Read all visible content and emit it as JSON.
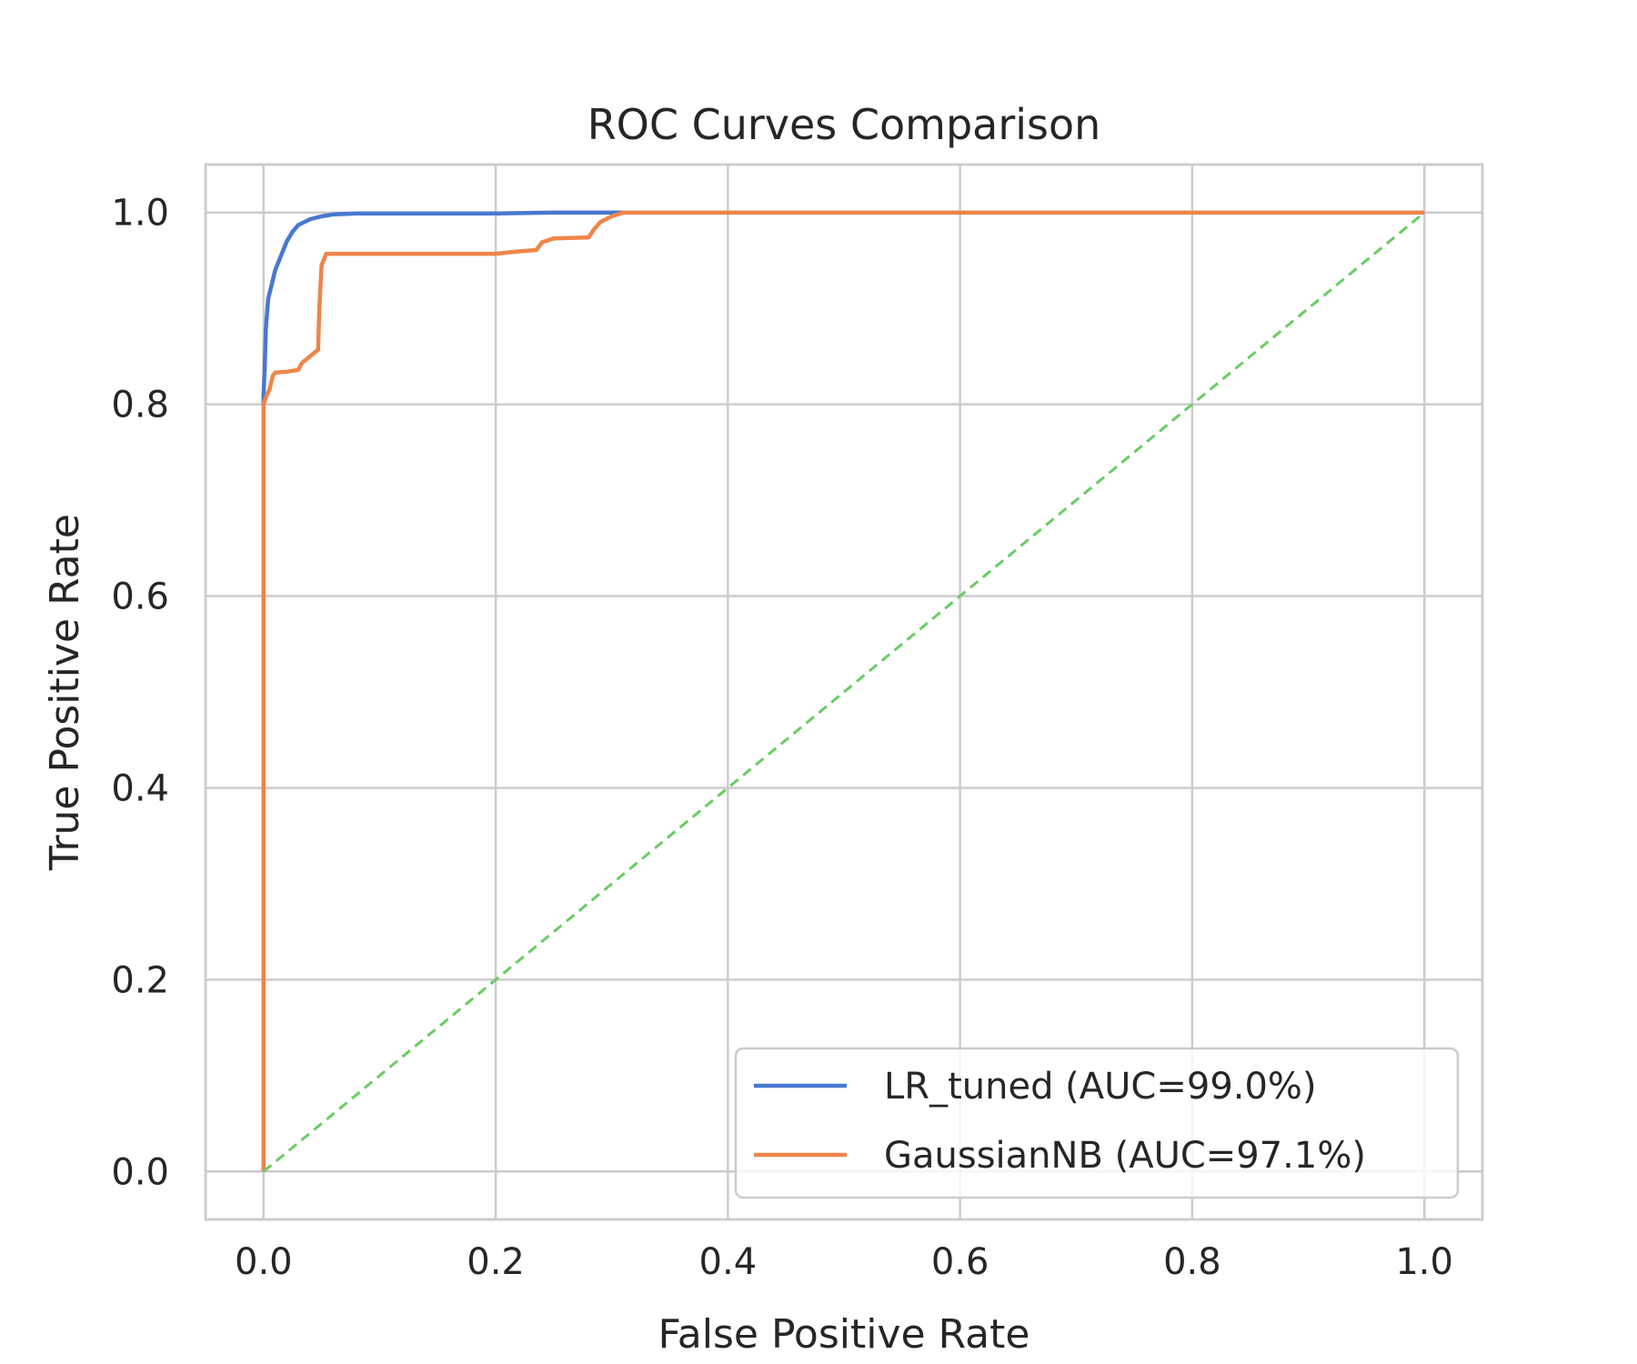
{
  "chart_data": {
    "type": "line",
    "title": "ROC Curves Comparison",
    "xlabel": "False Positive Rate",
    "ylabel": "True Positive Rate",
    "xlim": [
      -0.05,
      1.05
    ],
    "ylim": [
      -0.05,
      1.05
    ],
    "xticks": [
      0.0,
      0.2,
      0.4,
      0.6,
      0.8,
      1.0
    ],
    "yticks": [
      0.0,
      0.2,
      0.4,
      0.6,
      0.8,
      1.0
    ],
    "xtick_labels": [
      "0.0",
      "0.2",
      "0.4",
      "0.6",
      "0.8",
      "1.0"
    ],
    "ytick_labels": [
      "0.0",
      "0.2",
      "0.4",
      "0.6",
      "0.8",
      "1.0"
    ],
    "grid": true,
    "legend_position": "lower-right",
    "series": [
      {
        "name": "LR_tuned (AUC=99.0%)",
        "color": "#4878d0",
        "style": "solid",
        "x": [
          0.0,
          0.0,
          0.001,
          0.002,
          0.004,
          0.007,
          0.01,
          0.015,
          0.02,
          0.025,
          0.03,
          0.04,
          0.05,
          0.06,
          0.08,
          0.1,
          0.15,
          0.2,
          0.25,
          0.3,
          0.31,
          1.0
        ],
        "y": [
          0.0,
          0.81,
          0.84,
          0.88,
          0.91,
          0.925,
          0.94,
          0.955,
          0.97,
          0.98,
          0.987,
          0.993,
          0.996,
          0.998,
          0.999,
          0.999,
          0.999,
          0.999,
          1.0,
          1.0,
          1.0,
          1.0
        ]
      },
      {
        "name": "GaussianNB (AUC=97.1%)",
        "color": "#ee854a",
        "style": "solid",
        "x": [
          0.0,
          0.0,
          0.003,
          0.005,
          0.008,
          0.01,
          0.02,
          0.03,
          0.033,
          0.04,
          0.047,
          0.048,
          0.05,
          0.054,
          0.06,
          0.1,
          0.15,
          0.2,
          0.215,
          0.235,
          0.24,
          0.25,
          0.28,
          0.285,
          0.29,
          0.3,
          0.31,
          1.0
        ],
        "y": [
          0.0,
          0.8,
          0.81,
          0.815,
          0.83,
          0.833,
          0.834,
          0.836,
          0.843,
          0.85,
          0.857,
          0.9,
          0.945,
          0.957,
          0.957,
          0.957,
          0.957,
          0.957,
          0.959,
          0.961,
          0.969,
          0.973,
          0.974,
          0.983,
          0.99,
          0.996,
          1.0,
          1.0
        ]
      },
      {
        "name": "",
        "color": "#6acc64",
        "style": "dashed",
        "x": [
          0.0,
          1.0
        ],
        "y": [
          0.0,
          1.0
        ]
      }
    ]
  }
}
